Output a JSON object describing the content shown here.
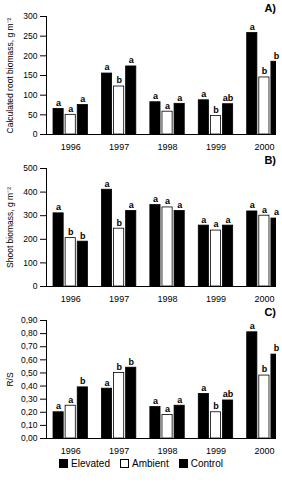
{
  "chart_data": [
    {
      "type": "bar",
      "title": "A)",
      "y_label": "Calculated root biomass, g m⁻²",
      "categories": [
        "1996",
        "1997",
        "1998",
        "1999",
        "2000"
      ],
      "ylim": [
        0,
        300
      ],
      "yticks": [
        0,
        50,
        100,
        150,
        200,
        250,
        300
      ],
      "series": [
        {
          "name": "Elevated",
          "color": "#000000",
          "values": [
            65,
            155,
            82,
            87,
            258
          ],
          "letters": [
            "a",
            "a",
            "a",
            "a",
            "a"
          ]
        },
        {
          "name": "Ambient",
          "color": "#ffffff",
          "values": [
            50,
            122,
            58,
            47,
            145
          ],
          "letters": [
            "a",
            "b",
            "a",
            "b",
            "b"
          ]
        },
        {
          "name": "Control",
          "color": "#000000",
          "values": [
            75,
            173,
            78,
            77,
            185
          ],
          "letters": [
            "a",
            "a",
            "a",
            "ab",
            "b"
          ]
        }
      ]
    },
    {
      "type": "bar",
      "title": "B)",
      "y_label": "Shoot biomass, g m⁻²",
      "categories": [
        "1996",
        "1997",
        "1998",
        "1999",
        "2000"
      ],
      "ylim": [
        0,
        500
      ],
      "yticks": [
        0,
        100,
        200,
        300,
        400,
        500
      ],
      "series": [
        {
          "name": "Elevated",
          "color": "#000000",
          "values": [
            310,
            410,
            345,
            258,
            318
          ],
          "letters": [
            "a",
            "a",
            "a",
            "a",
            "a"
          ]
        },
        {
          "name": "Ambient",
          "color": "#ffffff",
          "values": [
            205,
            245,
            335,
            237,
            300
          ],
          "letters": [
            "b",
            "b",
            "a",
            "a",
            "a"
          ]
        },
        {
          "name": "Control",
          "color": "#000000",
          "values": [
            190,
            320,
            320,
            258,
            288
          ],
          "letters": [
            "b",
            "a",
            "a",
            "a",
            "a"
          ]
        }
      ]
    },
    {
      "type": "bar",
      "title": "C)",
      "y_label": "R/S",
      "categories": [
        "1996",
        "1997",
        "1998",
        "1999",
        "2000"
      ],
      "ylim": [
        0,
        0.9
      ],
      "yticks": [
        {
          "value": 0,
          "label": "0,00"
        },
        {
          "value": 0.1,
          "label": "0,10"
        },
        {
          "value": 0.2,
          "label": "0,20"
        },
        {
          "value": 0.3,
          "label": "0,30"
        },
        {
          "value": 0.4,
          "label": "0,40"
        },
        {
          "value": 0.5,
          "label": "0,50"
        },
        {
          "value": 0.6,
          "label": "0,60"
        },
        {
          "value": 0.7,
          "label": "0,70"
        },
        {
          "value": 0.8,
          "label": "0,80"
        },
        {
          "value": 0.9,
          "label": "0,90"
        }
      ],
      "legend": "bottom",
      "series": [
        {
          "name": "Elevated",
          "color": "#000000",
          "values": [
            0.2,
            0.38,
            0.24,
            0.34,
            0.81
          ],
          "letters": [
            "a",
            "a",
            "a",
            "a",
            "a"
          ]
        },
        {
          "name": "Ambient",
          "color": "#ffffff",
          "values": [
            0.25,
            0.5,
            0.18,
            0.2,
            0.48
          ],
          "letters": [
            "a",
            "b",
            "a",
            "b",
            "b"
          ]
        },
        {
          "name": "Control",
          "color": "#000000",
          "values": [
            0.39,
            0.54,
            0.25,
            0.29,
            0.64
          ],
          "letters": [
            "b",
            "b",
            "a",
            "ab",
            "b"
          ]
        }
      ]
    }
  ]
}
